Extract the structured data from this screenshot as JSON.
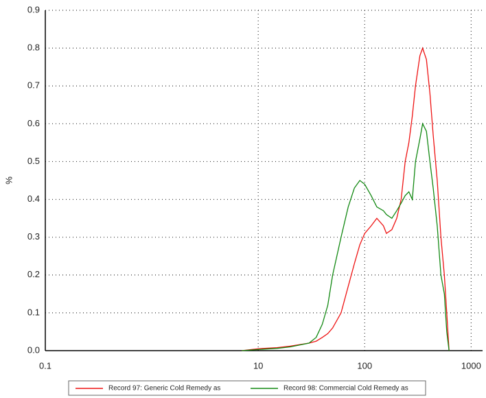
{
  "chart_data": {
    "type": "line",
    "y_label": "%",
    "log_x": true,
    "grid": true,
    "x": [
      7,
      10,
      15,
      20,
      30,
      35,
      40,
      45,
      50,
      60,
      70,
      80,
      90,
      100,
      115,
      130,
      150,
      160,
      180,
      200,
      220,
      240,
      260,
      280,
      300,
      330,
      350,
      380,
      410,
      440,
      480,
      520,
      560,
      590,
      620
    ],
    "series": [
      {
        "name": "Record 97: Generic Cold Remedy as",
        "color": "#ee1111",
        "values": [
          0,
          0.005,
          0.008,
          0.012,
          0.02,
          0.025,
          0.035,
          0.045,
          0.06,
          0.1,
          0.17,
          0.23,
          0.28,
          0.31,
          0.33,
          0.35,
          0.33,
          0.31,
          0.32,
          0.35,
          0.4,
          0.5,
          0.55,
          0.62,
          0.7,
          0.78,
          0.8,
          0.77,
          0.68,
          0.57,
          0.45,
          0.3,
          0.2,
          0.1,
          0
        ]
      },
      {
        "name": "Record 98: Commercial Cold Remedy as",
        "color": "#118811",
        "values": [
          0,
          0.003,
          0.006,
          0.01,
          0.02,
          0.035,
          0.07,
          0.12,
          0.2,
          0.3,
          0.38,
          0.43,
          0.45,
          0.44,
          0.41,
          0.38,
          0.37,
          0.36,
          0.35,
          0.37,
          0.39,
          0.41,
          0.42,
          0.4,
          0.5,
          0.56,
          0.6,
          0.58,
          0.5,
          0.43,
          0.33,
          0.2,
          0.15,
          0.05,
          0
        ]
      }
    ],
    "xlim": [
      0.1,
      1280
    ],
    "xticks": [
      0.1,
      10,
      100,
      1000
    ],
    "ylim": [
      0,
      0.9
    ],
    "yticks": [
      {
        "value": 0,
        "label": "0.0"
      },
      0.1,
      0.2,
      0.3,
      0.4,
      0.5,
      0.6,
      0.7,
      0.8,
      0.9
    ]
  }
}
